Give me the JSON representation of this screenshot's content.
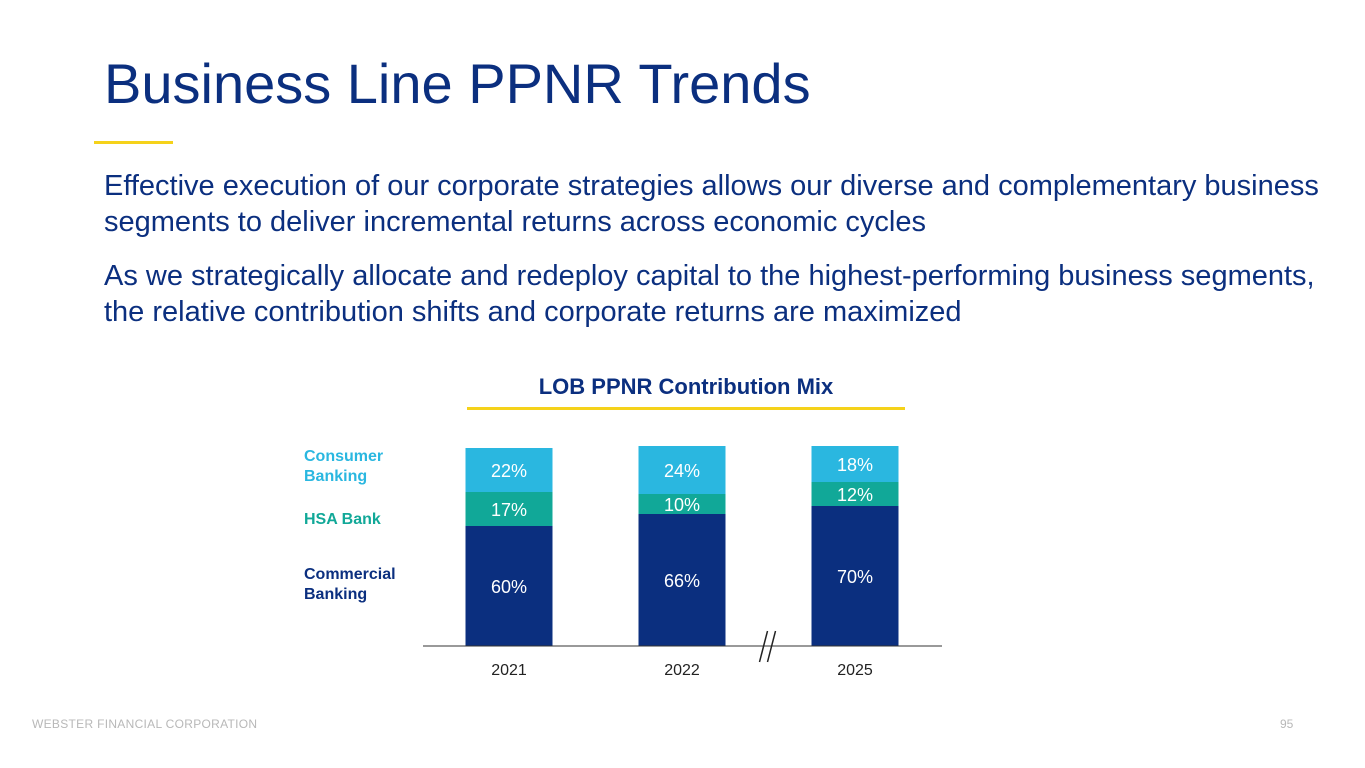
{
  "slide": {
    "title": "Business Line PPNR Trends",
    "paragraph_1": "Effective execution of our corporate strategies allows our diverse and complementary business segments to deliver incremental returns across economic cycles",
    "paragraph_2": "As we strategically allocate and redeploy capital to the highest-performing business segments, the relative contribution shifts and corporate returns are maximized",
    "footer": "WEBSTER FINANCIAL CORPORATION",
    "page_number": "95"
  },
  "colors": {
    "navy": "#0b2f7f",
    "teal": "#11a898",
    "sky": "#2ab7e0",
    "accent_yellow": "#f5d21a"
  },
  "chart_data": {
    "type": "bar",
    "stacked": true,
    "title": "LOB PPNR Contribution Mix",
    "categories": [
      "2021",
      "2022",
      "2025"
    ],
    "axis_break_between": [
      "2022",
      "2025"
    ],
    "series": [
      {
        "name": "Commercial Banking",
        "values": [
          60,
          66,
          70
        ],
        "labels": [
          "60%",
          "66%",
          "70%"
        ],
        "color": "#0b2f7f"
      },
      {
        "name": "HSA Bank",
        "values": [
          17,
          10,
          12
        ],
        "labels": [
          "17%",
          "10%",
          "12%"
        ],
        "color": "#11a898"
      },
      {
        "name": "Consumer Banking",
        "values": [
          22,
          24,
          18
        ],
        "labels": [
          "22%",
          "24%",
          "18%"
        ],
        "color": "#2ab7e0"
      }
    ],
    "legend": {
      "position": "left",
      "entries": [
        "Consumer Banking",
        "HSA Bank",
        "Commercial Banking"
      ]
    },
    "ylim": [
      0,
      100
    ],
    "grid": false
  }
}
